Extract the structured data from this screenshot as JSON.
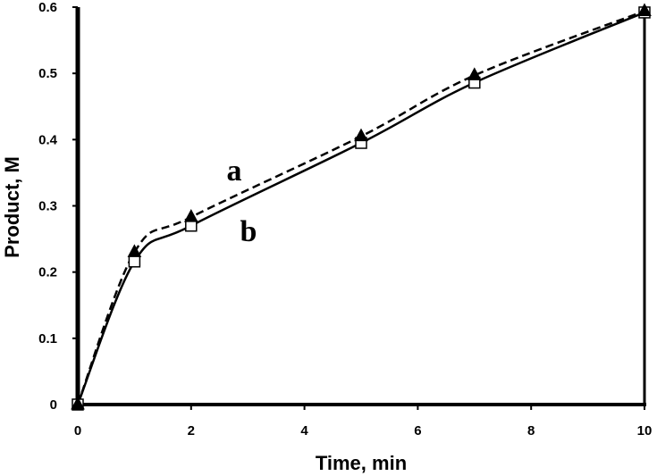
{
  "chart_data": {
    "type": "line",
    "title": "",
    "xlabel": "Time, min",
    "ylabel": "Product, M",
    "xlim": [
      0,
      10
    ],
    "ylim": [
      0,
      0.6
    ],
    "x_ticks": [
      0,
      2,
      4,
      6,
      8,
      10
    ],
    "y_ticks": [
      0,
      0.1,
      0.2,
      0.3,
      0.4,
      0.5,
      0.6
    ],
    "x_tick_labels": [
      "0",
      "2",
      "4",
      "6",
      "8",
      "10"
    ],
    "y_tick_labels": [
      "0",
      "0.1",
      "0.2",
      "0.3",
      "0.4",
      "0.5",
      "0.6"
    ],
    "grid": false,
    "legend": "none",
    "series": [
      {
        "name": "a",
        "line_style": "dashed",
        "marker": "filled-triangle",
        "color": "#000000",
        "x": [
          0,
          1,
          2,
          5,
          7,
          10
        ],
        "y": [
          0,
          0.23,
          0.283,
          0.405,
          0.497,
          0.594
        ]
      },
      {
        "name": "b",
        "line_style": "solid",
        "marker": "open-square",
        "color": "#000000",
        "x": [
          0,
          1,
          2,
          5,
          7,
          10
        ],
        "y": [
          0,
          0.216,
          0.27,
          0.395,
          0.486,
          0.592
        ]
      }
    ]
  }
}
